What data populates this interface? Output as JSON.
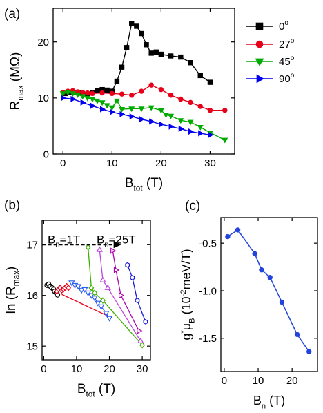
{
  "chart_data": [
    {
      "panel_label": "(a)",
      "type": "line",
      "xlabel": {
        "main": "B",
        "sub": "tot",
        "unit": " (T)"
      },
      "ylabel": {
        "main": "R",
        "sub": "max",
        "unit": " (MΩ)"
      },
      "xlim": [
        -2,
        35
      ],
      "ylim": [
        0,
        26
      ],
      "xticks": [
        0,
        10,
        20,
        30
      ],
      "yticks": [
        0,
        10,
        20
      ],
      "legend_position": "right",
      "series": [
        {
          "name": "0",
          "deg": "o",
          "color": "#000000",
          "marker": "square",
          "x": [
            0.5,
            1.5,
            2.5,
            3.5,
            5,
            6,
            7,
            8,
            9,
            10,
            11,
            12,
            13,
            14,
            15,
            16,
            17,
            18,
            19,
            20,
            22,
            24,
            26,
            28,
            30
          ],
          "y": [
            10.8,
            11.0,
            11.0,
            10.9,
            10.7,
            10.9,
            11.3,
            11.5,
            11.4,
            11.2,
            13.0,
            15.5,
            19.0,
            23.3,
            22.8,
            21.5,
            19.5,
            18.0,
            18.2,
            17.8,
            17.5,
            17.3,
            16.3,
            14.0,
            12.8
          ]
        },
        {
          "name": "27",
          "deg": "o",
          "color": "#e8001a",
          "marker": "circle",
          "x": [
            0,
            1,
            2,
            3,
            4,
            5,
            6,
            8,
            10,
            12,
            14,
            16,
            18,
            20,
            22,
            24,
            26,
            28,
            30,
            33
          ],
          "y": [
            11.0,
            11.2,
            11.3,
            11.1,
            11.0,
            10.9,
            10.8,
            10.9,
            10.8,
            10.7,
            10.5,
            11.2,
            12.3,
            11.5,
            10.5,
            9.8,
            9.2,
            8.5,
            7.8,
            7.8
          ]
        },
        {
          "name": "45",
          "deg": "o",
          "color": "#00aa00",
          "marker": "triangle-down",
          "x": [
            0,
            1,
            2,
            3,
            4,
            5,
            6,
            7,
            8,
            9,
            10,
            11,
            12,
            14,
            16,
            18,
            20,
            21,
            22,
            24,
            26,
            28,
            30,
            33
          ],
          "y": [
            10.8,
            11.0,
            10.8,
            10.6,
            10.3,
            10.0,
            9.8,
            9.5,
            9.2,
            8.7,
            8.3,
            9.5,
            8.0,
            8.1,
            8.1,
            8.3,
            7.8,
            7.0,
            6.8,
            6.0,
            5.7,
            4.8,
            3.8,
            2.5
          ]
        },
        {
          "name": "90",
          "deg": "o",
          "color": "#0000ee",
          "marker": "triangle-right",
          "x": [
            0,
            2,
            4,
            6,
            8,
            10,
            12,
            14,
            16,
            18,
            20,
            22,
            24,
            26,
            28,
            30
          ],
          "y": [
            10.0,
            9.8,
            9.2,
            8.6,
            8.0,
            7.5,
            7.1,
            6.7,
            6.2,
            5.8,
            5.3,
            4.9,
            4.5,
            4.0,
            3.7,
            3.4
          ]
        }
      ]
    },
    {
      "panel_label": "(b)",
      "type": "line",
      "xlabel": {
        "main": "B",
        "sub": "tot",
        "unit": " (T)"
      },
      "ylabel": {
        "main": "ln (R",
        "sub": "max",
        "unit": ")"
      },
      "xlim": [
        -0.5,
        32.5
      ],
      "ylim": [
        14.73,
        17.48
      ],
      "xticks": [
        0,
        10,
        20,
        30
      ],
      "yticks": [
        15,
        16,
        17
      ],
      "annotation": {
        "left": {
          "main": "B",
          "sub": "n",
          "rest": "=1T"
        },
        "right": {
          "main": "B",
          "sub": "n",
          "rest": "=25T"
        },
        "arrow_from": [
          13.5,
          17.0
        ],
        "arrow_to": [
          21.5,
          17.0
        ]
      },
      "series": [
        {
          "color": "#000000",
          "marker": "circle-open",
          "x": [
            1,
            1.5,
            2,
            2.5,
            3,
            3.3,
            3.8,
            4.2
          ],
          "y": [
            16.2,
            16.22,
            16.18,
            16.15,
            16.12,
            16.08,
            16.05,
            16.01
          ]
        },
        {
          "color": "#e8001a",
          "marker": "diamond-open",
          "x": [
            4,
            4.5,
            5,
            5.5,
            6,
            6.5,
            7,
            7.5
          ],
          "y": [
            16.08,
            16.12,
            16.15,
            16.1,
            16.12,
            16.15,
            16.18,
            16.15
          ]
        },
        {
          "color": "#e8001a",
          "marker": "none",
          "x": [
            5.5,
            20
          ],
          "y": [
            16.02,
            15.58
          ]
        },
        {
          "color": "#2a5cf0",
          "marker": "triangle-down-open",
          "x": [
            8.5,
            9.5,
            10.5,
            11.5,
            12.5,
            13.5,
            14.5,
            15.5,
            16.5,
            17.5,
            19,
            20
          ],
          "y": [
            16.25,
            16.2,
            16.18,
            16.1,
            16.12,
            16.05,
            16.0,
            15.95,
            15.85,
            15.78,
            15.65,
            15.55
          ]
        },
        {
          "color": "#3db000",
          "marker": "diamond-open",
          "x": [
            13.5,
            14.5,
            15.5,
            18,
            30
          ],
          "y": [
            16.95,
            16.15,
            16.05,
            15.9,
            15.02
          ]
        },
        {
          "color": "#bb44dd",
          "marker": "triangle-up-open",
          "x": [
            17,
            18,
            19.5,
            29.5
          ],
          "y": [
            16.9,
            16.3,
            16.15,
            15.1
          ]
        },
        {
          "color": "#b000b0",
          "marker": "triangle-right-open",
          "x": [
            21,
            22,
            23.5,
            29
          ],
          "y": [
            16.88,
            16.5,
            16.0,
            15.3
          ]
        },
        {
          "color": "#1a1add",
          "marker": "hexagon-open",
          "x": [
            25.5,
            27,
            28.5,
            31
          ],
          "y": [
            16.6,
            16.35,
            15.9,
            15.48
          ]
        }
      ]
    },
    {
      "panel_label": "(c)",
      "type": "line",
      "xlabel": {
        "main": "B",
        "sub": "n",
        "unit": " (T)"
      },
      "ylabel": {
        "main": "g",
        "sup": "*",
        "mid": "μ",
        "sub": "B",
        "unit": "  (10",
        "unit_sup": "-2",
        "unit_end": "meV/T)"
      },
      "xlim": [
        -1,
        27.5
      ],
      "ylim": [
        -1.85,
        -0.23
      ],
      "xticks": [
        0,
        10,
        20
      ],
      "yticks": [
        -0.5,
        -1.0,
        -1.5
      ],
      "ytick_labels": [
        "-0.5",
        "-1.0",
        "-1.5"
      ],
      "series": [
        {
          "color": "#2244dd",
          "marker": "circle",
          "x": [
            1,
            4,
            9,
            11,
            13.5,
            17,
            21.5,
            25
          ],
          "y": [
            -0.43,
            -0.36,
            -0.61,
            -0.78,
            -0.86,
            -1.12,
            -1.46,
            -1.64
          ]
        }
      ]
    }
  ]
}
